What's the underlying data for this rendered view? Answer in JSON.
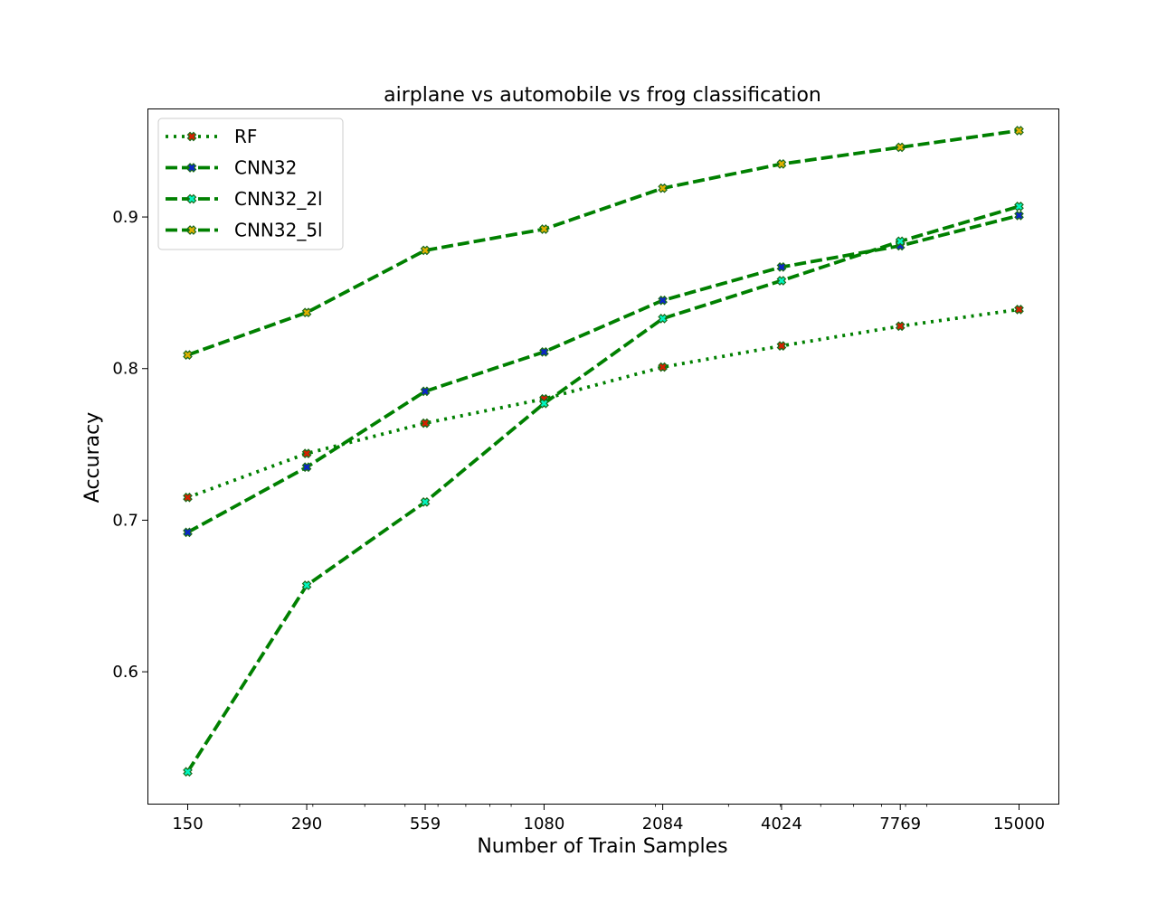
{
  "chart_data": {
    "type": "line",
    "title": "airplane vs automobile vs frog classification",
    "xlabel": "Number of Train Samples",
    "ylabel": "Accuracy",
    "x_scale": "log",
    "x": [
      150,
      290,
      559,
      1080,
      2084,
      4024,
      7769,
      15000
    ],
    "x_tick_labels": [
      "150",
      "290",
      "559",
      "1080",
      "2084",
      "4024",
      "7769",
      "15000"
    ],
    "y_ticks": [
      0.6,
      0.7,
      0.8,
      0.9
    ],
    "y_tick_labels": [
      "0.6",
      "0.7",
      "0.8",
      "0.9"
    ],
    "ylim": [
      0.513,
      0.971
    ],
    "grid": false,
    "legend_position": "top-left",
    "series": [
      {
        "name": "RF",
        "line_style": "dotted",
        "line_color": "#008000",
        "marker_color": "#d62000",
        "values": [
          0.715,
          0.744,
          0.764,
          0.78,
          0.801,
          0.815,
          0.828,
          0.839
        ]
      },
      {
        "name": "CNN32",
        "line_style": "dashed",
        "line_color": "#008000",
        "marker_color": "#0b24c9",
        "values": [
          0.692,
          0.735,
          0.785,
          0.811,
          0.845,
          0.867,
          0.881,
          0.901
        ]
      },
      {
        "name": "CNN32_2l",
        "line_style": "dashed",
        "line_color": "#008000",
        "marker_color": "#00f5c0",
        "values": [
          0.534,
          0.657,
          0.712,
          0.777,
          0.833,
          0.858,
          0.884,
          0.907
        ]
      },
      {
        "name": "CNN32_5l",
        "line_style": "dashed",
        "line_color": "#008000",
        "marker_color": "#e0b000",
        "values": [
          0.809,
          0.837,
          0.878,
          0.892,
          0.919,
          0.935,
          0.946,
          0.957
        ]
      }
    ]
  }
}
